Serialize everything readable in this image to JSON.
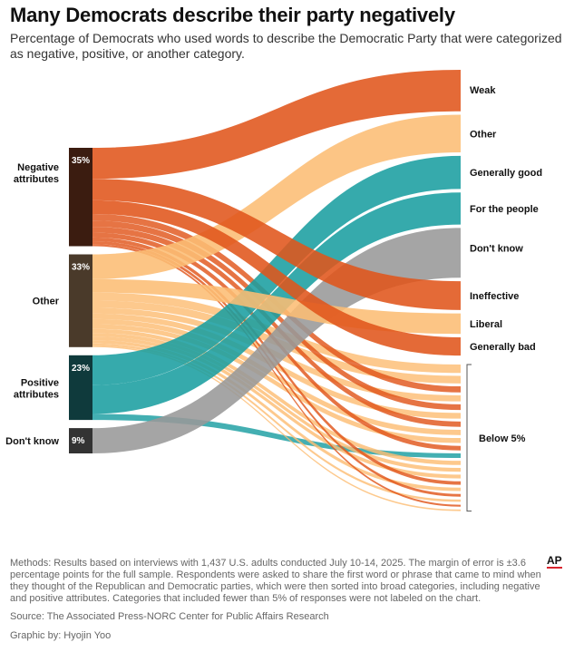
{
  "header": {
    "title": "Many Democrats describe their party negatively",
    "subtitle": "Percentage of Democrats who used words to describe the Democratic Party that were categorized as negative, positive, or another category."
  },
  "footer": {
    "methods": "Methods: Results based on interviews with 1,437 U.S. adults conducted July 10-14, 2025. The margin of error is ±3.6 percentage points for the full sample. Respondents were asked to share the first word or phrase that came to mind when they thought of the Republican and Democratic parties, which were then sorted into broad categories, including negative and positive attributes. Categories that included fewer than 5% of responses were not labeled on the chart.",
    "source": "Source: The Associated Press-NORC Center for Public Affairs Research",
    "credit": "Graphic by: Hyojin Yoo",
    "logo": "AP"
  },
  "chart_data": {
    "type": "sankey",
    "title": "Many Democrats describe their party negatively",
    "value_unit": "percent",
    "sources": [
      {
        "id": "neg",
        "label": "Negative attributes",
        "value_label": "35%",
        "value": 35,
        "color": "#e0551b",
        "box_color": "#3b1c10"
      },
      {
        "id": "oth",
        "label": "Other",
        "value_label": "33%",
        "value": 33,
        "color": "#fcbd74",
        "box_color": "#4a3a2a"
      },
      {
        "id": "pos",
        "label": "Positive attributes",
        "value_label": "23%",
        "value": 23,
        "color": "#1a9ea1",
        "box_color": "#0f3a3c"
      },
      {
        "id": "dk",
        "label": "Don't know",
        "value_label": "9%",
        "value": 9,
        "color": "#999999",
        "box_color": "#333333"
      }
    ],
    "targets": [
      {
        "label": "Weak",
        "source": "neg",
        "value": 7.5
      },
      {
        "label": "Other",
        "source": "oth",
        "value": 6.8
      },
      {
        "label": "Generally good",
        "source": "pos",
        "value": 6.0
      },
      {
        "label": "For the people",
        "source": "pos",
        "value": 5.8
      },
      {
        "label": "Don't know",
        "source": "dk",
        "value": 9.0
      },
      {
        "label": "Ineffective",
        "source": "neg",
        "value": 5.2
      },
      {
        "label": "Liberal",
        "source": "oth",
        "value": 3.7
      },
      {
        "label": "Generally bad",
        "source": "neg",
        "value": 3.3
      }
    ],
    "small_categories": {
      "label": "Below 5%",
      "items": [
        {
          "source": "oth",
          "value": 2.2
        },
        {
          "source": "oth",
          "value": 2.0
        },
        {
          "source": "neg",
          "value": 1.6
        },
        {
          "source": "oth",
          "value": 1.6
        },
        {
          "source": "neg",
          "value": 1.5
        },
        {
          "source": "oth",
          "value": 1.5
        },
        {
          "source": "neg",
          "value": 1.4
        },
        {
          "source": "oth",
          "value": 1.4
        },
        {
          "source": "oth",
          "value": 1.3
        },
        {
          "source": "neg",
          "value": 1.2
        },
        {
          "source": "pos",
          "value": 1.2
        },
        {
          "source": "oth",
          "value": 1.1
        },
        {
          "source": "oth",
          "value": 1.0
        },
        {
          "source": "oth",
          "value": 1.0
        },
        {
          "source": "neg",
          "value": 0.9
        },
        {
          "source": "oth",
          "value": 0.9
        },
        {
          "source": "neg",
          "value": 0.7
        },
        {
          "source": "oth",
          "value": 0.6
        },
        {
          "source": "neg",
          "value": 0.5
        },
        {
          "source": "oth",
          "value": 0.4
        }
      ]
    }
  }
}
